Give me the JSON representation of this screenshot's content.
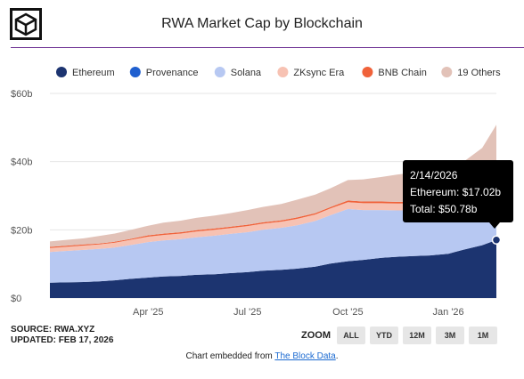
{
  "header": {
    "title": "RWA Market Cap by Blockchain",
    "logo_icon": "cube-logo-icon"
  },
  "chart_data": {
    "type": "area",
    "stacked": true,
    "title": "RWA Market Cap by Blockchain",
    "x_tick_labels": [
      "Apr '25",
      "Jul '25",
      "Oct '25",
      "Jan '26"
    ],
    "y_tick_labels": [
      "$0",
      "$20b",
      "$40b",
      "$60b"
    ],
    "ylim": [
      0,
      60
    ],
    "y_unit": "billions USD",
    "x_range": [
      "2025-01-01",
      "2026-02-14"
    ],
    "grid": true,
    "legend_position": "top",
    "x": [
      "2025-01-01",
      "2025-01-15",
      "2025-02-01",
      "2025-02-15",
      "2025-03-01",
      "2025-03-15",
      "2025-04-01",
      "2025-04-15",
      "2025-05-01",
      "2025-05-15",
      "2025-06-01",
      "2025-06-15",
      "2025-07-01",
      "2025-07-15",
      "2025-08-01",
      "2025-08-15",
      "2025-09-01",
      "2025-09-15",
      "2025-10-01",
      "2025-10-15",
      "2025-11-01",
      "2025-11-15",
      "2025-12-01",
      "2025-12-15",
      "2026-01-01",
      "2026-01-15",
      "2026-02-01",
      "2026-02-14"
    ],
    "series": [
      {
        "name": "Ethereum",
        "color": "#1c3470",
        "values": [
          4.5,
          4.6,
          4.7,
          4.9,
          5.2,
          5.6,
          6.0,
          6.3,
          6.5,
          6.8,
          7.0,
          7.3,
          7.6,
          8.0,
          8.3,
          8.6,
          9.2,
          10.1,
          10.8,
          11.2,
          11.8,
          12.1,
          12.3,
          12.5,
          13.0,
          14.2,
          15.5,
          17.02
        ]
      },
      {
        "name": "Provenance",
        "color": "#1f5fcf",
        "values": [
          0,
          0,
          0,
          0,
          0,
          0,
          0,
          0,
          0,
          0,
          0,
          0,
          0,
          0,
          0,
          0,
          0,
          0,
          0,
          0,
          0,
          0,
          0,
          0,
          0,
          0,
          0,
          0
        ]
      },
      {
        "name": "Solana",
        "color": "#b7c8f2",
        "values": [
          9.0,
          9.2,
          9.4,
          9.5,
          9.6,
          9.9,
          10.4,
          10.6,
          10.8,
          11.0,
          11.3,
          11.5,
          11.7,
          12.0,
          12.3,
          12.7,
          13.4,
          14.2,
          15.3,
          14.6,
          14.0,
          13.6,
          13.4,
          13.2,
          12.6,
          11.3,
          8.5,
          5.0
        ]
      },
      {
        "name": "ZKsync Era",
        "color": "#f7c2b3",
        "values": [
          1.2,
          1.2,
          1.3,
          1.3,
          1.4,
          1.5,
          1.6,
          1.6,
          1.6,
          1.7,
          1.7,
          1.7,
          1.8,
          1.8,
          1.8,
          1.9,
          1.9,
          2.0,
          2.0,
          2.0,
          2.0,
          2.0,
          2.0,
          2.0,
          2.0,
          2.0,
          2.0,
          2.0
        ]
      },
      {
        "name": "BNB Chain",
        "color": "#f0623a",
        "values": [
          0.3,
          0.3,
          0.3,
          0.3,
          0.3,
          0.3,
          0.4,
          0.4,
          0.4,
          0.4,
          0.4,
          0.4,
          0.4,
          0.4,
          0.4,
          0.4,
          0.4,
          0.4,
          0.5,
          0.5,
          0.5,
          0.5,
          0.5,
          0.5,
          0.5,
          0.5,
          0.5,
          0.5
        ]
      },
      {
        "name": "19 Others",
        "color": "#e2c2b8",
        "values": [
          1.6,
          1.7,
          1.8,
          2.2,
          2.4,
          2.6,
          2.8,
          3.2,
          3.4,
          3.6,
          3.8,
          4.0,
          4.3,
          4.5,
          4.8,
          5.2,
          5.4,
          5.5,
          6.0,
          6.5,
          7.2,
          8.0,
          8.6,
          9.5,
          10.5,
          12.0,
          17.5,
          26.26
        ]
      }
    ],
    "tooltip": {
      "date": "2/14/2026",
      "line1": "Ethereum: $17.02b",
      "line2": "Total: $50.78b"
    }
  },
  "footer": {
    "source": "SOURCE: RWA.XYZ",
    "updated": "UPDATED: FEB 17, 2026",
    "zoom_label": "ZOOM",
    "zoom_buttons": [
      "ALL",
      "YTD",
      "12M",
      "3M",
      "1M"
    ],
    "embed_prefix": "Chart embedded from ",
    "embed_link": "The Block Data",
    "embed_suffix": "."
  }
}
